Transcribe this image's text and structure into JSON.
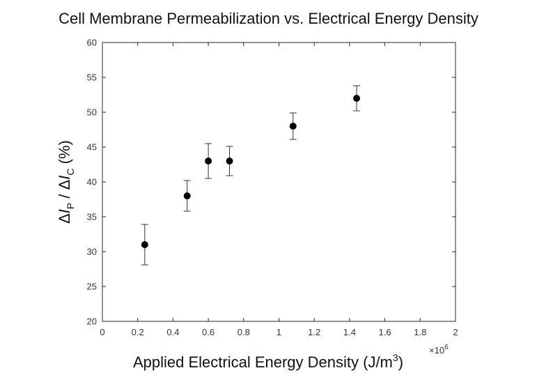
{
  "chart_data": {
    "type": "scatter",
    "title": "Cell Membrane Permeabilization vs. Electrical Energy Density",
    "xlabel": "Applied Electrical Energy Density (J/m",
    "xlabel_superscript": "3",
    "xlabel_close": ")",
    "x_multiplier": "×10",
    "x_multiplier_exponent": "6",
    "ylabel": {
      "delta1": "Δ",
      "italic1": "I",
      "sub1": "P",
      "sep": " / ",
      "delta2": "Δ",
      "italic2": "I",
      "sub2": "C",
      "unit": " (%)"
    },
    "xlim": [
      0,
      2
    ],
    "ylim": [
      20,
      60
    ],
    "x_ticks": [
      0,
      0.2,
      0.4,
      0.6,
      0.8,
      1,
      1.2,
      1.4,
      1.6,
      1.8,
      2
    ],
    "x_tick_labels": [
      "0",
      "0.2",
      "0.4",
      "0.6",
      "0.8",
      "1",
      "1.2",
      "1.4",
      "1.6",
      "1.8",
      "2"
    ],
    "y_ticks": [
      20,
      25,
      30,
      35,
      40,
      45,
      50,
      55,
      60
    ],
    "y_tick_labels": [
      "20",
      "25",
      "30",
      "35",
      "40",
      "45",
      "50",
      "55",
      "60"
    ],
    "grid": false,
    "points": [
      {
        "x": 0.24,
        "y": 31,
        "err_low": 28.1,
        "err_high": 33.9
      },
      {
        "x": 0.48,
        "y": 38,
        "err_low": 35.8,
        "err_high": 40.2
      },
      {
        "x": 0.6,
        "y": 43,
        "err_low": 40.5,
        "err_high": 45.5
      },
      {
        "x": 0.72,
        "y": 43,
        "err_low": 40.9,
        "err_high": 45.1
      },
      {
        "x": 1.08,
        "y": 48,
        "err_low": 46.1,
        "err_high": 49.9
      },
      {
        "x": 1.44,
        "y": 52,
        "err_low": 50.2,
        "err_high": 53.8
      }
    ],
    "colors": {
      "marker": "#000000",
      "axis": "#262626",
      "errorbar": "#333333"
    }
  }
}
